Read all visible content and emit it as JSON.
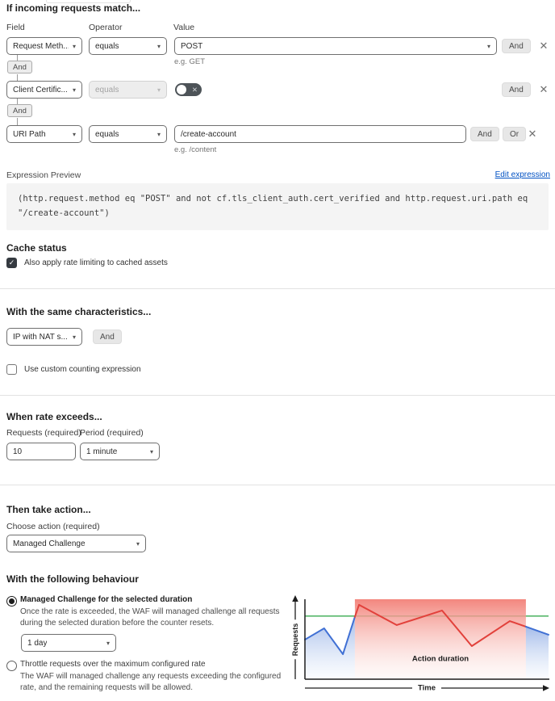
{
  "icons": {
    "chevron_down": "▾",
    "close": "✕",
    "check": "✓",
    "toggle_x": "✕"
  },
  "match": {
    "title": "If incoming requests match...",
    "field_label": "Field",
    "operator_label": "Operator",
    "value_label": "Value",
    "connector": "And",
    "and_button": "And",
    "or_button": "Or",
    "rows": [
      {
        "field": "Request Meth...",
        "operator": "equals",
        "value": "POST",
        "helper": "e.g. GET"
      },
      {
        "field": "Client Certific...",
        "operator": "equals"
      },
      {
        "field": "URI Path",
        "operator": "equals",
        "value": "/create-account",
        "helper": "e.g. /content"
      }
    ]
  },
  "expression": {
    "label": "Expression Preview",
    "edit_link": "Edit expression",
    "code": "(http.request.method eq \"POST\" and not cf.tls_client_auth.cert_verified and http.request.uri.path eq \"/create-account\")"
  },
  "cache": {
    "title": "Cache status",
    "checkbox_label": "Also apply rate limiting to cached assets",
    "checked": true
  },
  "characteristics": {
    "title": "With the same characteristics...",
    "select_value": "IP with NAT s...",
    "and_button": "And",
    "custom_checkbox_label": "Use custom counting expression",
    "custom_checked": false
  },
  "rate": {
    "title": "When rate exceeds...",
    "requests_label": "Requests (required)",
    "period_label": "Period (required)",
    "requests_value": "10",
    "period_value": "1 minute"
  },
  "action": {
    "title": "Then take action...",
    "choose_label": "Choose action (required)",
    "value": "Managed Challenge"
  },
  "behaviour": {
    "title": "With the following behaviour",
    "options": [
      {
        "label": "Managed Challenge for the selected duration",
        "description": "Once the rate is exceeded, the WAF will managed challenge all requests during the selected duration before the counter resets.",
        "selected": true,
        "duration_value": "1 day"
      },
      {
        "label": "Throttle requests over the maximum configured rate",
        "description": "The WAF will managed challenge any requests exceeding the configured rate, and the remaining requests will be allowed.",
        "selected": false
      }
    ]
  },
  "chart_data": {
    "type": "line",
    "ylabel": "Requests",
    "xlabel": "Time",
    "annotation": "Action duration",
    "x_range": [
      0,
      100
    ],
    "y_range": [
      0,
      100
    ],
    "axis_color": "#1d1d1d",
    "threshold": {
      "value": 79,
      "color": "#57b86b"
    },
    "action_region": {
      "x_start": 20.5,
      "x_end": 90.7,
      "color_top": "#f28077",
      "color_bottom": "#fdf1ef"
    },
    "series": [
      {
        "name": "requests-before-action",
        "color": "#4070d4",
        "area": true,
        "points": [
          [
            0,
            49.5
          ],
          [
            7.9,
            63.6
          ],
          [
            15.6,
            31.3
          ],
          [
            20.5,
            78
          ]
        ]
      },
      {
        "name": "requests-during-action",
        "color": "#e2413b",
        "area": false,
        "points": [
          [
            20.5,
            78
          ],
          [
            22.2,
            93
          ],
          [
            37.7,
            67.7
          ],
          [
            56.3,
            85.9
          ],
          [
            68.5,
            41.4
          ],
          [
            84.1,
            72.7
          ],
          [
            90.7,
            65.7
          ]
        ]
      },
      {
        "name": "requests-after-action",
        "color": "#4070d4",
        "area": true,
        "points": [
          [
            90.7,
            65.7
          ],
          [
            100,
            55.6
          ]
        ]
      }
    ]
  }
}
